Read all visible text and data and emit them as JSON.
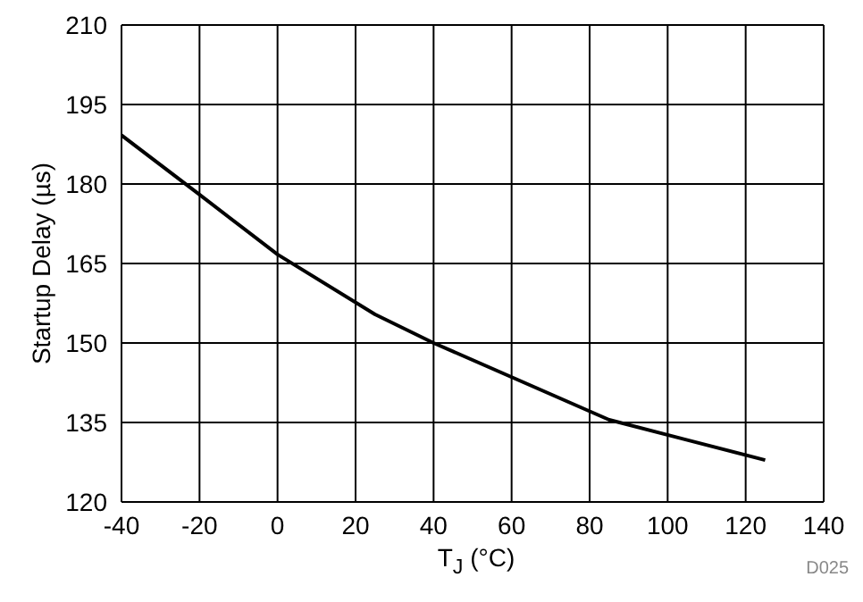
{
  "chart_data": {
    "type": "line",
    "xlabel": "T$_{J}$ (°C)",
    "ylabel": "Startup Delay (µs)",
    "annotations": [
      "D025"
    ],
    "x": [
      -40,
      -20,
      0,
      25,
      40,
      85,
      125
    ],
    "series": [
      {
        "color": "#000000",
        "values": [
          189.2,
          178,
          166.7,
          155.4,
          150,
          135.5,
          127.9
        ]
      }
    ],
    "xlim": [
      -40,
      140
    ],
    "xticks": [
      -40,
      -20,
      0,
      20,
      40,
      60,
      80,
      100,
      120,
      140
    ],
    "ylim": [
      120,
      210
    ],
    "yticks": [
      120,
      135,
      150,
      165,
      180,
      195,
      210
    ],
    "grid": true,
    "marker": "none",
    "line_style": "solid"
  }
}
